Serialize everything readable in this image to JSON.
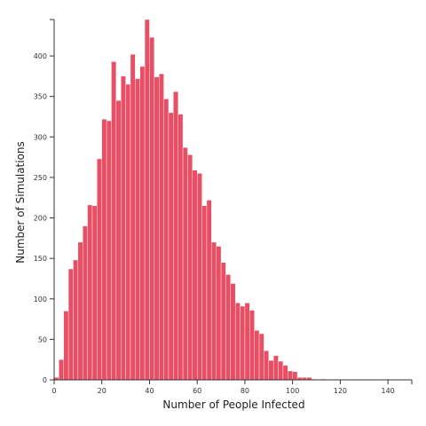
{
  "chart_data": {
    "type": "bar",
    "title": "",
    "xlabel": "Number of People Infected",
    "ylabel": "Number of Simulations",
    "bin_width": 2,
    "bin_start": 0,
    "xlim": [
      0,
      150
    ],
    "ylim": [
      0,
      445
    ],
    "x_ticks": [
      0,
      20,
      40,
      60,
      80,
      100,
      120,
      140
    ],
    "y_ticks": [
      0,
      50,
      100,
      150,
      200,
      250,
      300,
      350,
      400
    ],
    "grid": false,
    "bar_color": "#e94f64",
    "values": [
      3,
      25,
      85,
      137,
      148,
      170,
      190,
      216,
      215,
      273,
      322,
      320,
      393,
      345,
      375,
      365,
      402,
      372,
      387,
      445,
      423,
      374,
      378,
      347,
      330,
      356,
      328,
      287,
      278,
      259,
      255,
      215,
      222,
      170,
      165,
      145,
      130,
      119,
      95,
      91,
      95,
      86,
      61,
      57,
      36,
      24,
      30,
      23,
      18,
      11,
      10,
      3,
      3,
      3,
      1,
      0,
      1,
      0,
      0,
      0,
      0,
      0,
      0,
      0,
      0,
      0,
      0,
      0,
      0,
      0,
      0,
      0,
      0,
      0,
      0
    ]
  }
}
